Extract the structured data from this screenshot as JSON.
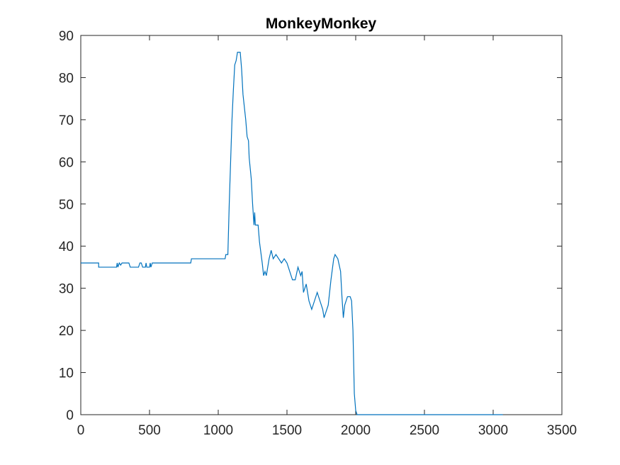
{
  "chart_data": {
    "type": "line",
    "title": "MonkeyMonkey",
    "x": [
      0,
      130,
      130,
      260,
      265,
      270,
      280,
      290,
      300,
      350,
      360,
      420,
      430,
      440,
      450,
      470,
      475,
      480,
      500,
      505,
      510,
      520,
      800,
      805,
      1050,
      1055,
      1070,
      1080,
      1090,
      1100,
      1110,
      1120,
      1130,
      1140,
      1160,
      1170,
      1180,
      1200,
      1210,
      1220,
      1225,
      1240,
      1250,
      1260,
      1265,
      1270,
      1290,
      1300,
      1320,
      1330,
      1340,
      1350,
      1370,
      1385,
      1400,
      1420,
      1440,
      1460,
      1480,
      1500,
      1520,
      1540,
      1560,
      1580,
      1600,
      1610,
      1620,
      1640,
      1660,
      1680,
      1700,
      1720,
      1740,
      1760,
      1770,
      1780,
      1800,
      1820,
      1840,
      1850,
      1870,
      1890,
      1900,
      1910,
      1920,
      1940,
      1960,
      1970,
      1980,
      1990,
      2000,
      2010,
      3070
    ],
    "series": [
      {
        "color": "#0072bd",
        "values": [
          36,
          36,
          35,
          35,
          36,
          35,
          36,
          35.5,
          36,
          36,
          35,
          35,
          36,
          36,
          35,
          35,
          36,
          35,
          35,
          36,
          35,
          36,
          36,
          37,
          37,
          38,
          38,
          50,
          60,
          70,
          77,
          83,
          84,
          86,
          86,
          82,
          76,
          70,
          66,
          65,
          61,
          56,
          50,
          45,
          48,
          45,
          45,
          41,
          36,
          33,
          34,
          33,
          37,
          39,
          37,
          38,
          37,
          36,
          37,
          36,
          34,
          32,
          32,
          35,
          33,
          34,
          29,
          31,
          27,
          25,
          27,
          29,
          27,
          25,
          23,
          24,
          26,
          32,
          37,
          38,
          37,
          34,
          28,
          23,
          26,
          28,
          28,
          27,
          20,
          5,
          1,
          0,
          0
        ]
      }
    ],
    "xlim": [
      0,
      3500
    ],
    "xticks": [
      0,
      500,
      1000,
      1500,
      2000,
      2500,
      3000,
      3500
    ],
    "ylim": [
      0,
      90
    ],
    "yticks": [
      0,
      10,
      20,
      30,
      40,
      50,
      60,
      70,
      80,
      90
    ]
  }
}
